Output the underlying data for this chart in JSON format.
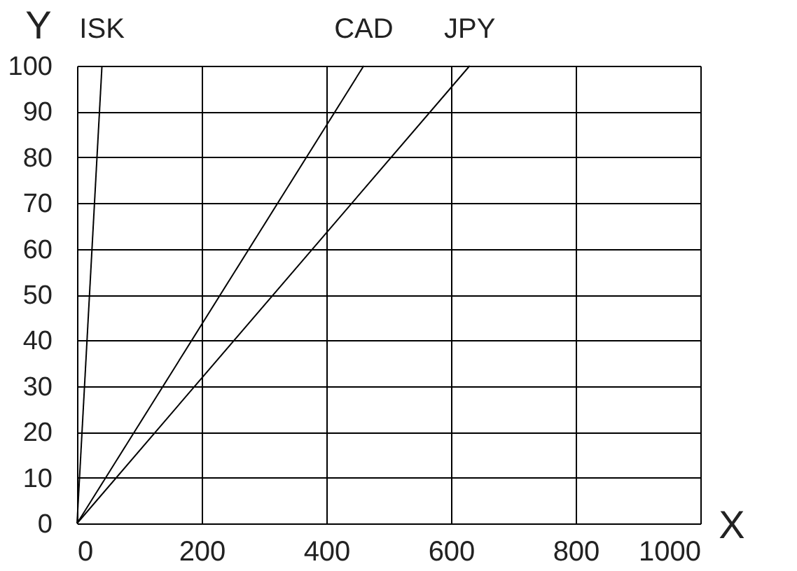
{
  "chart_data": {
    "type": "line",
    "xlabel": "X",
    "ylabel": "Y",
    "series": [
      {
        "name": "ISK",
        "color": "#000000",
        "x": [
          0,
          40
        ],
        "values": [
          0,
          100
        ]
      },
      {
        "name": "CAD",
        "color": "#000000",
        "x": [
          0,
          460
        ],
        "values": [
          0,
          100
        ]
      },
      {
        "name": "JPY",
        "color": "#000000",
        "x": [
          0,
          630
        ],
        "values": [
          0,
          100
        ]
      }
    ],
    "xlim": [
      0,
      1000
    ],
    "xticks": [
      0,
      200,
      400,
      600,
      800,
      1000
    ],
    "ylim": [
      0,
      100
    ],
    "yticks": [
      0,
      10,
      20,
      30,
      40,
      50,
      60,
      70,
      80,
      90,
      100
    ],
    "grid": true,
    "legend": false,
    "marker": "none",
    "line_style": "solid"
  }
}
